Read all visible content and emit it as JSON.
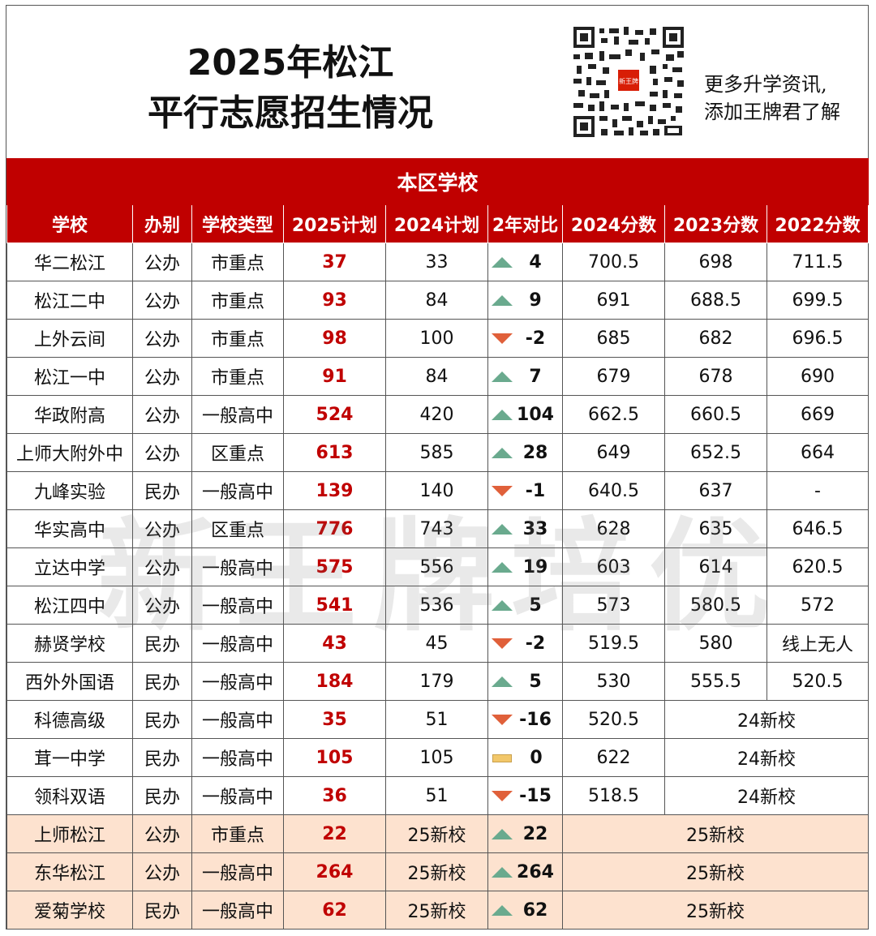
{
  "title_line1": "2025年松江",
  "title_line2": "平行志愿招生情况",
  "promo_line1": "更多升学资讯,",
  "promo_line2": "添加王牌君了解",
  "qr_label": "新王牌",
  "watermark": "新王牌培优",
  "section_title": "本区学校",
  "columns": [
    "学校",
    "办别",
    "学校类型",
    "2025计划",
    "2024计划",
    "2年对比",
    "2024分数",
    "2023分数",
    "2022分数"
  ],
  "rows": [
    {
      "school": "华二松江",
      "type": "公办",
      "level": "市重点",
      "plan2025": "37",
      "plan2024": "33",
      "trend": "up",
      "diff": "4",
      "s2024": "700.5",
      "s2023": "698",
      "s2022": "711.5"
    },
    {
      "school": "松江二中",
      "type": "公办",
      "level": "市重点",
      "plan2025": "93",
      "plan2024": "84",
      "trend": "up",
      "diff": "9",
      "s2024": "691",
      "s2023": "688.5",
      "s2022": "699.5"
    },
    {
      "school": "上外云间",
      "type": "公办",
      "level": "市重点",
      "plan2025": "98",
      "plan2024": "100",
      "trend": "down",
      "diff": "-2",
      "s2024": "685",
      "s2023": "682",
      "s2022": "696.5"
    },
    {
      "school": "松江一中",
      "type": "公办",
      "level": "市重点",
      "plan2025": "91",
      "plan2024": "84",
      "trend": "up",
      "diff": "7",
      "s2024": "679",
      "s2023": "678",
      "s2022": "690"
    },
    {
      "school": "华政附高",
      "type": "公办",
      "level": "一般高中",
      "plan2025": "524",
      "plan2024": "420",
      "trend": "up",
      "diff": "104",
      "s2024": "662.5",
      "s2023": "660.5",
      "s2022": "669"
    },
    {
      "school": "上师大附外中",
      "type": "公办",
      "level": "区重点",
      "plan2025": "613",
      "plan2024": "585",
      "trend": "up",
      "diff": "28",
      "s2024": "649",
      "s2023": "652.5",
      "s2022": "664"
    },
    {
      "school": "九峰实验",
      "type": "民办",
      "level": "一般高中",
      "plan2025": "139",
      "plan2024": "140",
      "trend": "down",
      "diff": "-1",
      "s2024": "640.5",
      "s2023": "637",
      "s2022": "-"
    },
    {
      "school": "华实高中",
      "type": "公办",
      "level": "区重点",
      "plan2025": "776",
      "plan2024": "743",
      "trend": "up",
      "diff": "33",
      "s2024": "628",
      "s2023": "635",
      "s2022": "646.5"
    },
    {
      "school": "立达中学",
      "type": "公办",
      "level": "一般高中",
      "plan2025": "575",
      "plan2024": "556",
      "trend": "up",
      "diff": "19",
      "s2024": "603",
      "s2023": "614",
      "s2022": "620.5"
    },
    {
      "school": "松江四中",
      "type": "公办",
      "level": "一般高中",
      "plan2025": "541",
      "plan2024": "536",
      "trend": "up",
      "diff": "5",
      "s2024": "573",
      "s2023": "580.5",
      "s2022": "572"
    },
    {
      "school": "赫贤学校",
      "type": "民办",
      "level": "一般高中",
      "plan2025": "43",
      "plan2024": "45",
      "trend": "down",
      "diff": "-2",
      "s2024": "519.5",
      "s2023": "580",
      "s2022": "线上无人"
    },
    {
      "school": "西外外国语",
      "type": "民办",
      "level": "一般高中",
      "plan2025": "184",
      "plan2024": "179",
      "trend": "up",
      "diff": "5",
      "s2024": "530",
      "s2023": "555.5",
      "s2022": "520.5"
    },
    {
      "school": "科德高级",
      "type": "民办",
      "level": "一般高中",
      "plan2025": "35",
      "plan2024": "51",
      "trend": "down",
      "diff": "-16",
      "s2024": "520.5",
      "merged": "24新校"
    },
    {
      "school": "茸一中学",
      "type": "民办",
      "level": "一般高中",
      "plan2025": "105",
      "plan2024": "105",
      "trend": "flat",
      "diff": "0",
      "s2024": "622",
      "merged": "24新校"
    },
    {
      "school": "领科双语",
      "type": "民办",
      "level": "一般高中",
      "plan2025": "36",
      "plan2024": "51",
      "trend": "down",
      "diff": "-15",
      "s2024": "518.5",
      "merged": "24新校"
    },
    {
      "school": "上师松江",
      "type": "公办",
      "level": "市重点",
      "plan2025": "22",
      "plan2024": "25新校",
      "trend": "up",
      "diff": "22",
      "merged3": "25新校",
      "newschool": true
    },
    {
      "school": "东华松江",
      "type": "公办",
      "level": "一般高中",
      "plan2025": "264",
      "plan2024": "25新校",
      "trend": "up",
      "diff": "264",
      "merged3": "25新校",
      "newschool": true
    },
    {
      "school": "爱菊学校",
      "type": "民办",
      "level": "一般高中",
      "plan2025": "62",
      "plan2024": "25新校",
      "trend": "up",
      "diff": "62",
      "merged3": "25新校",
      "newschool": true
    }
  ]
}
